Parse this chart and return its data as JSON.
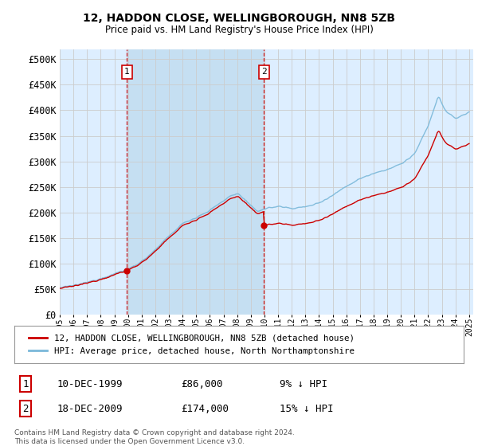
{
  "title": "12, HADDON CLOSE, WELLINGBOROUGH, NN8 5ZB",
  "subtitle": "Price paid vs. HM Land Registry's House Price Index (HPI)",
  "ytick_values": [
    0,
    50000,
    100000,
    150000,
    200000,
    250000,
    300000,
    350000,
    400000,
    450000,
    500000
  ],
  "ylim": [
    0,
    520000
  ],
  "x_start_year": 1995,
  "x_end_year": 2025,
  "sale1_date": "10-DEC-1999",
  "sale1_price": 86000,
  "sale1_year": 1999.92,
  "sale2_date": "18-DEC-2009",
  "sale2_price": 174000,
  "sale2_year": 2009.96,
  "legend_line1": "12, HADDON CLOSE, WELLINGBOROUGH, NN8 5ZB (detached house)",
  "legend_line2": "HPI: Average price, detached house, North Northamptonshire",
  "footer1": "Contains HM Land Registry data © Crown copyright and database right 2024.",
  "footer2": "This data is licensed under the Open Government Licence v3.0.",
  "hpi_color": "#7ab8d9",
  "price_color": "#cc0000",
  "bg_color": "#ddeeff",
  "shade_color": "#c5dff2",
  "plot_bg": "#ffffff",
  "vline_color": "#cc0000",
  "grid_color": "#cccccc",
  "label_box_color": "#cc0000"
}
